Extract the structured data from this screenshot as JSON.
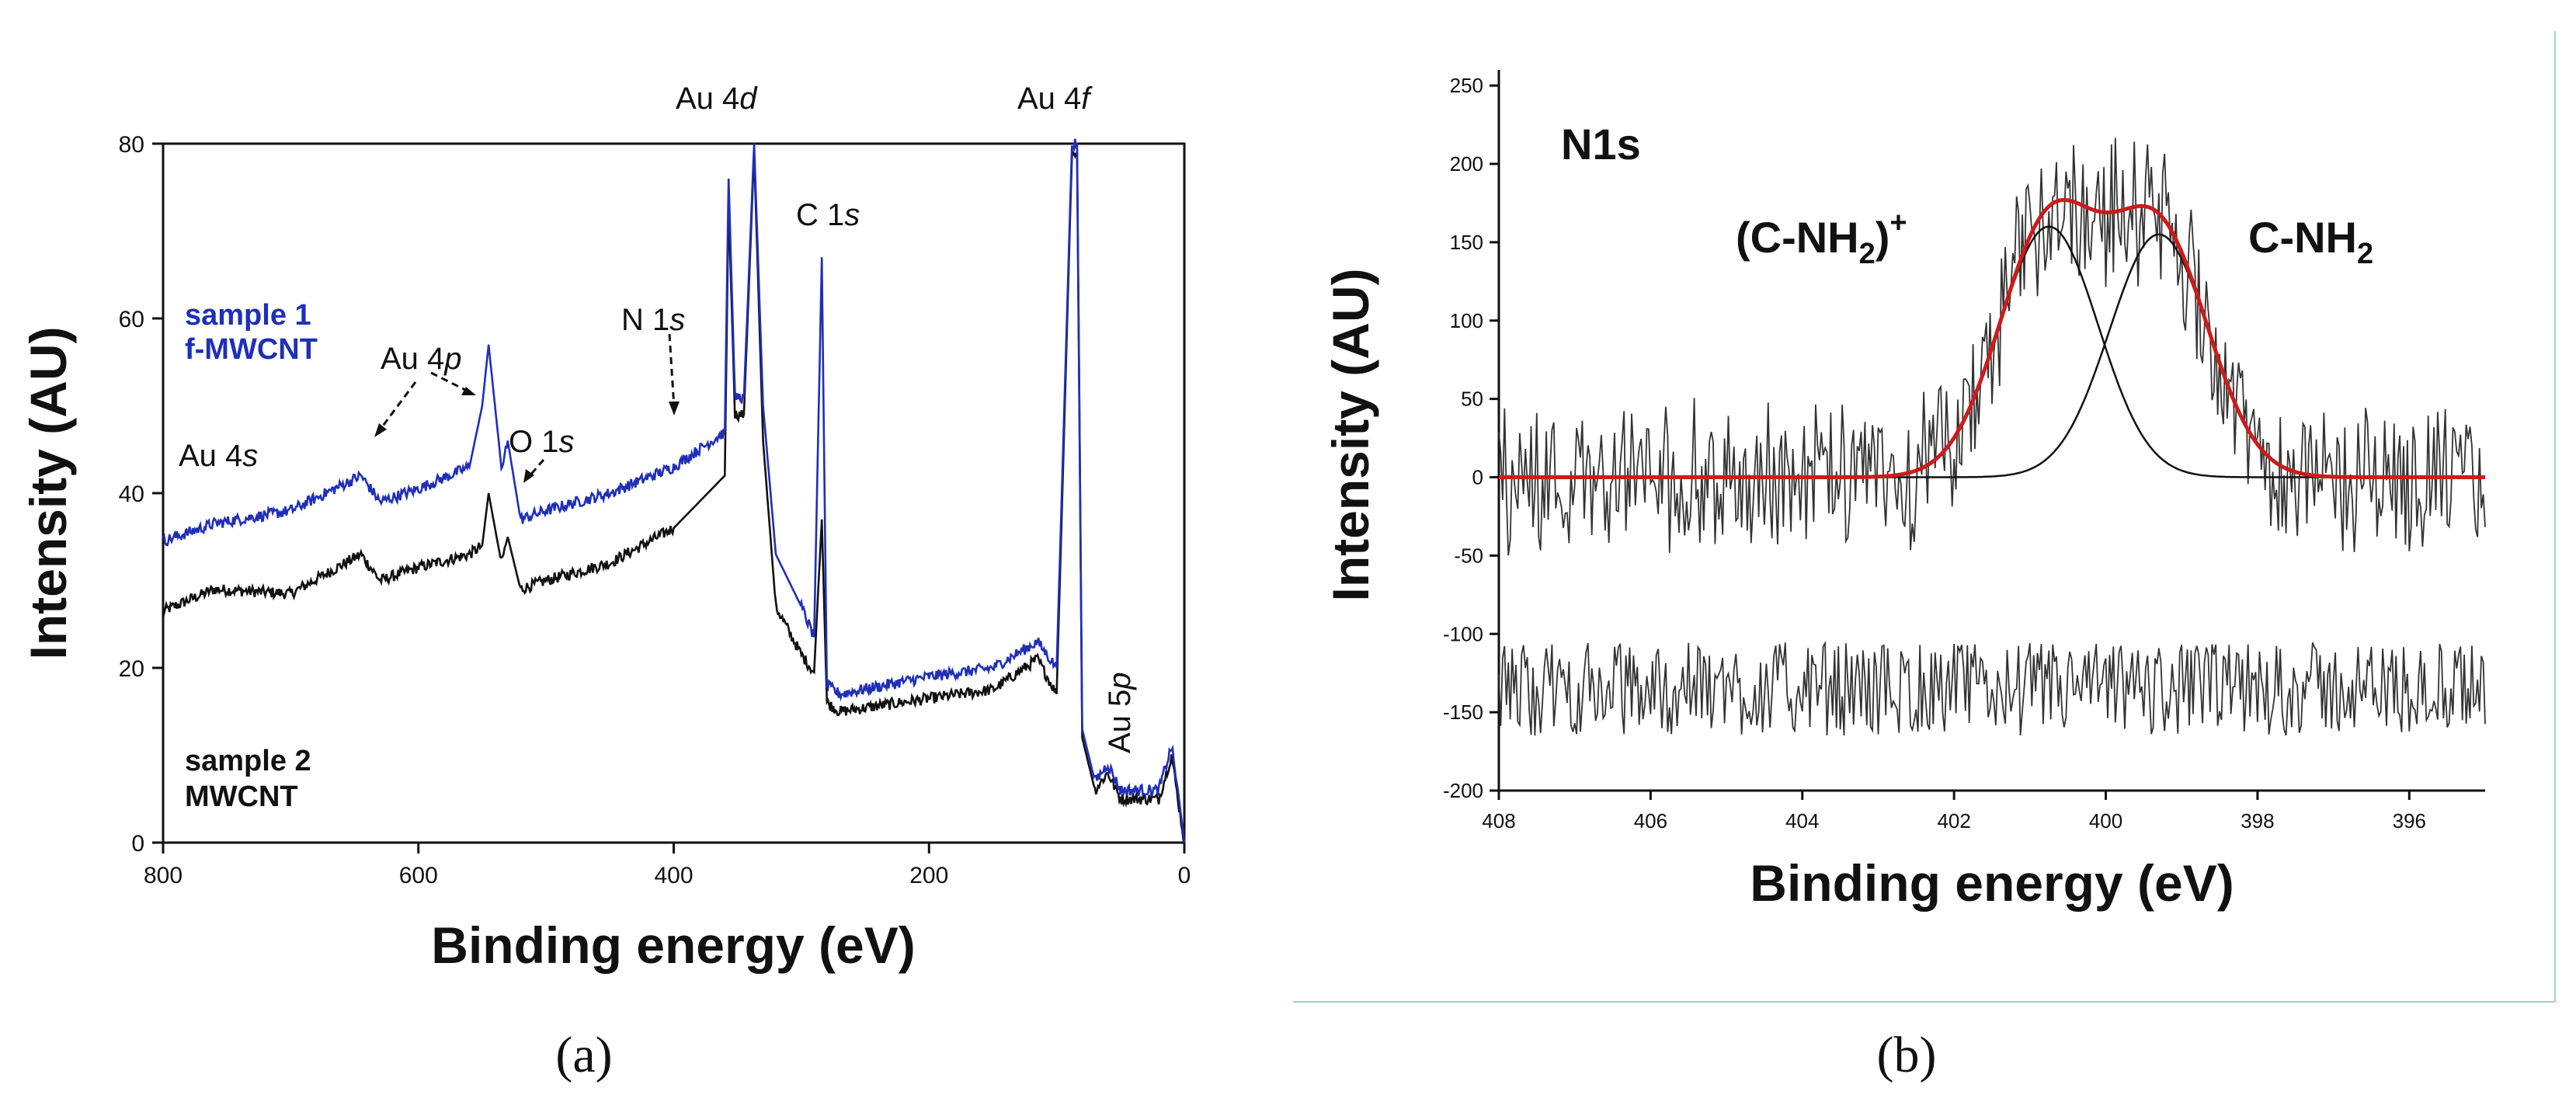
{
  "chart_data": [
    {
      "type": "line",
      "panel": "(a)",
      "xlabel": "Binding energy (eV)",
      "ylabel": "Intensity (AU)",
      "xlim": [
        800,
        0
      ],
      "ylim": [
        0,
        80
      ],
      "xticks": [
        800,
        600,
        400,
        200,
        0
      ],
      "yticks": [
        0,
        20,
        40,
        60,
        80
      ],
      "colors": {
        "sample1": "#1f2fb8",
        "sample2": "#111111"
      },
      "series": [
        {
          "name": "sample 1 f-MWCNT",
          "x": [
            800,
            760,
            700,
            645,
            630,
            600,
            560,
            550,
            545,
            535,
            530,
            520,
            500,
            450,
            400,
            360,
            357,
            352,
            345,
            337,
            330,
            320,
            300,
            290,
            284,
            280,
            270,
            200,
            150,
            115,
            100,
            88,
            84,
            80,
            70,
            60,
            50,
            20,
            10,
            5,
            0
          ],
          "y": [
            34.5,
            36.5,
            38,
            42,
            39,
            40.5,
            43,
            50,
            57,
            43,
            46,
            37,
            38,
            40,
            43,
            47,
            76,
            51,
            51,
            80,
            50,
            33,
            27,
            23.5,
            67,
            18,
            17,
            19,
            20,
            23,
            20,
            80,
            80,
            13,
            7,
            9,
            6,
            6,
            11,
            6,
            0
          ]
        },
        {
          "name": "sample 2 MWCNT",
          "x": [
            800,
            760,
            700,
            645,
            630,
            600,
            560,
            550,
            545,
            535,
            530,
            520,
            500,
            450,
            400,
            360,
            357,
            352,
            345,
            337,
            330,
            320,
            300,
            290,
            284,
            280,
            270,
            200,
            150,
            115,
            100,
            88,
            84,
            80,
            70,
            60,
            50,
            20,
            10,
            5,
            0
          ],
          "y": [
            26.5,
            29,
            28.5,
            33,
            30,
            31.5,
            33,
            34,
            40,
            32,
            35,
            29,
            30,
            32,
            36,
            42,
            73,
            49,
            49,
            79,
            46,
            27,
            21.5,
            19.5,
            37,
            16,
            15,
            16.5,
            17.5,
            21,
            17,
            79,
            79,
            12,
            6,
            8,
            5,
            5,
            10,
            5,
            0
          ]
        }
      ],
      "annotations": {
        "au4s": "Au 4s",
        "au4p": "Au 4p",
        "o1s": "O 1s",
        "n1s": "N 1s",
        "au4d": "Au 4d",
        "c1s": "C 1s",
        "au4f": "Au 4f",
        "au5p": "Au 5p",
        "sample1_line1": "sample 1",
        "sample1_line2": "f-MWCNT",
        "sample2_line1": "sample 2",
        "sample2_line2": "MWCNT"
      }
    },
    {
      "type": "line",
      "panel": "(b)",
      "title": "N1s",
      "xlabel": "Binding energy (eV)",
      "ylabel": "Intensity (AU)",
      "xlim": [
        408,
        395
      ],
      "ylim": [
        -200,
        260
      ],
      "xticks": [
        408,
        406,
        404,
        402,
        400,
        398,
        396
      ],
      "yticks": [
        250,
        200,
        150,
        100,
        50,
        0,
        -50,
        -100,
        -150,
        -200
      ],
      "fit_components": [
        {
          "name": "(C-NH2)+",
          "center": 400.75,
          "amplitude": 160,
          "sigma": 0.65
        },
        {
          "name": "C-NH2",
          "center": 399.3,
          "amplitude": 155,
          "sigma": 0.65
        }
      ],
      "envelope_color": "#cc1b1b",
      "series": [
        {
          "name": "raw data",
          "description": "noisy N1s spectrum around fit envelope, noise amplitude about ±50"
        },
        {
          "name": "residual",
          "description": "noise centered at -135, amplitude about ±35"
        }
      ],
      "labels": {
        "peak1_main": "(C-NH",
        "peak1_sub": "2",
        "peak1_tail": ")",
        "peak1_sup": "+",
        "peak2_main": "C-NH",
        "peak2_sub": "2"
      }
    }
  ],
  "captions": {
    "a": "(a)",
    "b": "(b)"
  }
}
